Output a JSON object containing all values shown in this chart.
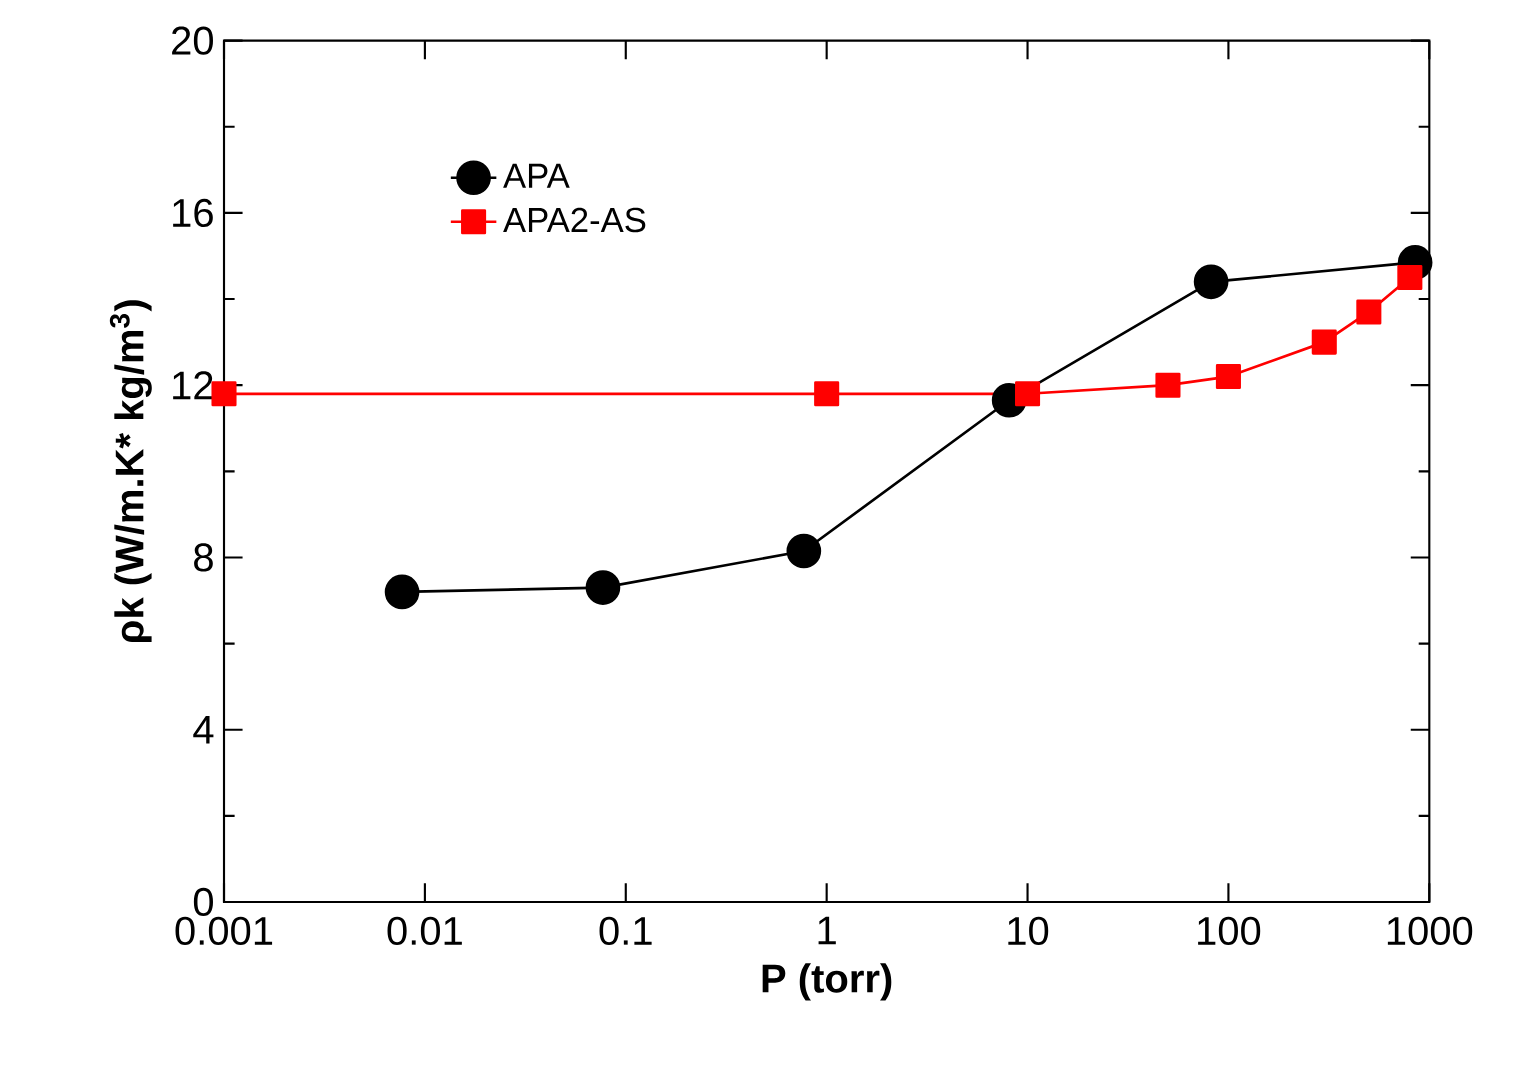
{
  "chart_data": {
    "type": "line",
    "xlabel": "P (torr)",
    "ylabel": "ρk (W/m.K* kg/m$^{3}$)",
    "log": "x",
    "xlim": [
      0.001,
      1000
    ],
    "xticks": [
      0.001,
      0.01,
      0.1,
      1,
      10,
      100,
      1000
    ],
    "ylim": [
      0,
      20
    ],
    "yticks": [
      0,
      4,
      8,
      12,
      16,
      20
    ],
    "grid": false,
    "legend": "top left",
    "series": [
      {
        "name": "APA",
        "color": "#000000",
        "marker": "circle",
        "x": [
          0.0077,
          0.077,
          0.77,
          8.1,
          82,
          850
        ],
        "values": [
          7.2,
          7.3,
          8.15,
          11.65,
          14.4,
          14.85
        ]
      },
      {
        "name": "APA2-AS",
        "color": "#ff0000",
        "marker": "square",
        "x": [
          0.001,
          1,
          10,
          50,
          100,
          300,
          500,
          800
        ],
        "values": [
          11.8,
          11.8,
          11.8,
          12.0,
          12.2,
          13.0,
          13.7,
          14.5
        ]
      }
    ]
  }
}
